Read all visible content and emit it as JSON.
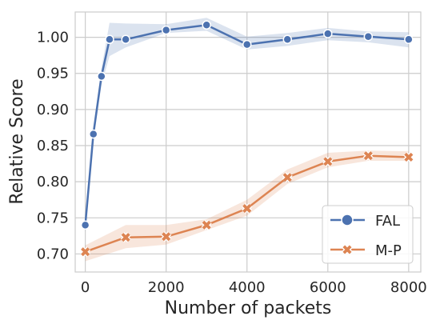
{
  "chart_data": {
    "type": "line",
    "xlabel": "Number of packets",
    "ylabel": "Relative Score",
    "xlim": [
      -250,
      8300
    ],
    "ylim": [
      0.675,
      1.035
    ],
    "x_ticks": [
      0,
      2000,
      4000,
      6000,
      8000
    ],
    "x_tick_labels": [
      "0",
      "2000",
      "4000",
      "6000",
      "8000"
    ],
    "y_ticks": [
      0.7,
      0.75,
      0.8,
      0.85,
      0.9,
      0.95,
      1.0
    ],
    "y_tick_labels": [
      "0.70",
      "0.75",
      "0.80",
      "0.85",
      "0.90",
      "0.95",
      "1.00"
    ],
    "grid": true,
    "legend_position": "bottom-right",
    "series": [
      {
        "name": "FAL",
        "color": "#4c72b0",
        "marker": "circle",
        "x": [
          0,
          200,
          400,
          600,
          1000,
          2000,
          3000,
          4000,
          5000,
          6000,
          7000,
          8000
        ],
        "y": [
          0.74,
          0.866,
          0.946,
          0.997,
          0.997,
          1.01,
          1.017,
          0.99,
          0.997,
          1.005,
          1.001,
          0.997
        ],
        "lower": [
          0.73,
          0.856,
          0.934,
          0.974,
          0.986,
          1.006,
          1.009,
          0.983,
          0.988,
          0.996,
          0.993,
          0.986
        ],
        "upper": [
          0.748,
          0.876,
          0.957,
          1.02,
          1.019,
          1.018,
          1.027,
          1.001,
          1.006,
          1.013,
          1.008,
          1.007
        ]
      },
      {
        "name": "M-P",
        "color": "#dd8452",
        "marker": "x",
        "x": [
          0,
          1000,
          2000,
          3000,
          4000,
          5000,
          6000,
          7000,
          8000
        ],
        "y": [
          0.703,
          0.723,
          0.724,
          0.74,
          0.763,
          0.806,
          0.828,
          0.836,
          0.834
        ],
        "lower": [
          0.69,
          0.708,
          0.713,
          0.733,
          0.753,
          0.797,
          0.82,
          0.829,
          0.829
        ],
        "upper": [
          0.712,
          0.74,
          0.74,
          0.748,
          0.775,
          0.817,
          0.84,
          0.843,
          0.842
        ]
      }
    ]
  }
}
